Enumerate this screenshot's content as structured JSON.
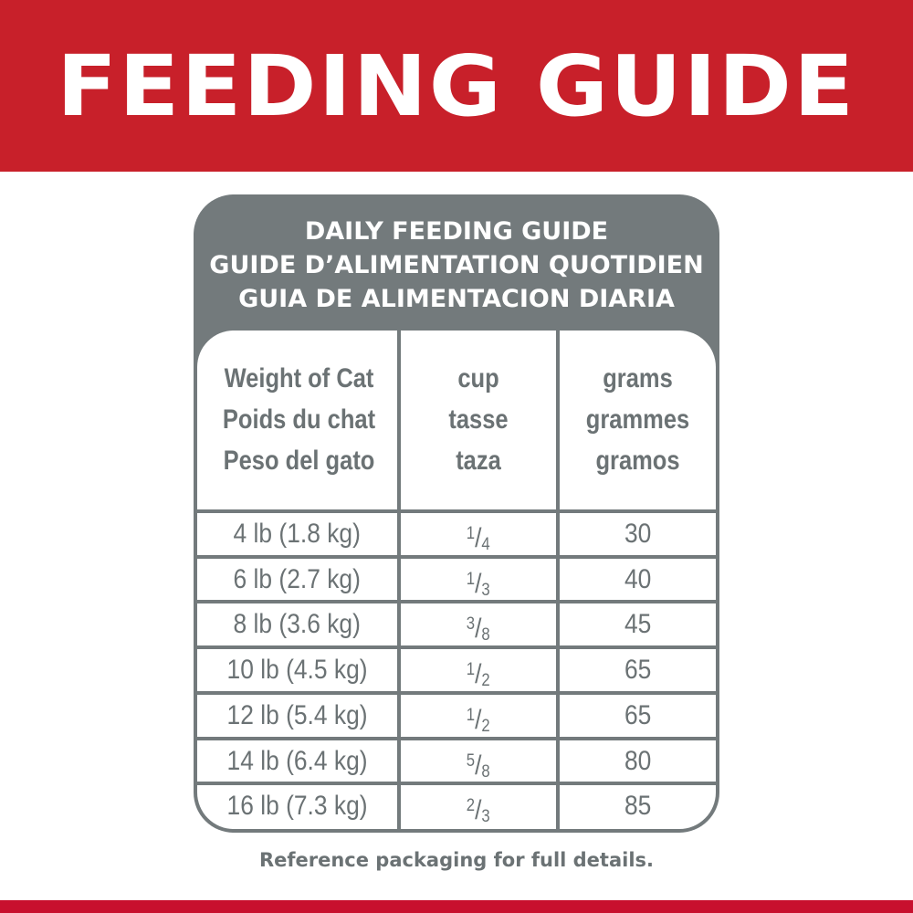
{
  "banner": {
    "title": "FEEDING GUIDE"
  },
  "colors": {
    "brand_red": "#c8202a",
    "card_gray": "#737a7c",
    "text_gray": "#6b7274"
  },
  "card": {
    "title_lines": [
      "DAILY FEEDING GUIDE",
      "GUIDE D’ALIMENTATION QUOTIDIEN",
      "GUIA DE ALIMENTACION DIARIA"
    ]
  },
  "table": {
    "headers": [
      [
        "Weight of Cat",
        "Poids du chat",
        "Peso del gato"
      ],
      [
        "cup",
        "tasse",
        "taza"
      ],
      [
        "grams",
        "grammes",
        "gramos"
      ]
    ],
    "rows": [
      {
        "weight": "4 lb (1.8 kg)",
        "cup_num": "1",
        "cup_den": "4",
        "grams": "30"
      },
      {
        "weight": "6 lb (2.7 kg)",
        "cup_num": "1",
        "cup_den": "3",
        "grams": "40"
      },
      {
        "weight": "8 lb (3.6 kg)",
        "cup_num": "3",
        "cup_den": "8",
        "grams": "45"
      },
      {
        "weight": "10 lb (4.5 kg)",
        "cup_num": "1",
        "cup_den": "2",
        "grams": "65"
      },
      {
        "weight": "12 lb (5.4 kg)",
        "cup_num": "1",
        "cup_den": "2",
        "grams": "65"
      },
      {
        "weight": "14 lb (6.4 kg)",
        "cup_num": "5",
        "cup_den": "8",
        "grams": "80"
      },
      {
        "weight": "16 lb (7.3 kg)",
        "cup_num": "2",
        "cup_den": "3",
        "grams": "85"
      }
    ]
  },
  "note": "Reference packaging for full details."
}
